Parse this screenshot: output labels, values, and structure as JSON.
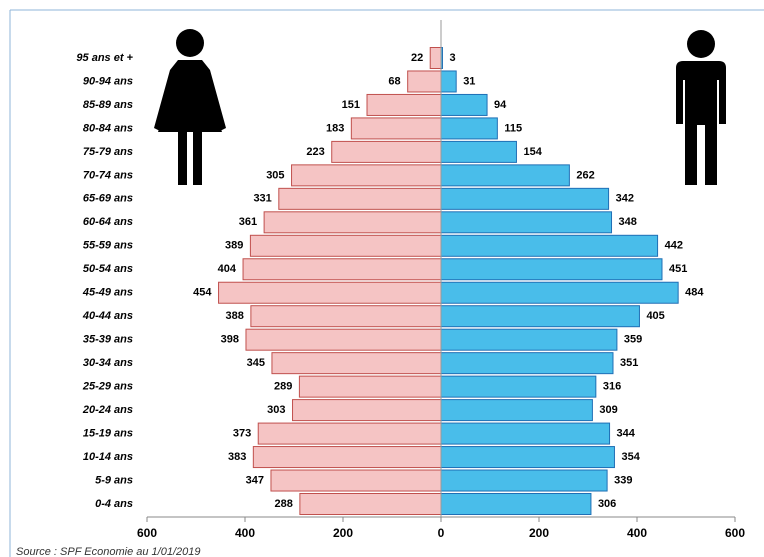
{
  "chart_data": {
    "type": "pyramid",
    "categories": [
      "95 ans et +",
      "90-94 ans",
      "85-89 ans",
      "80-84 ans",
      "75-79 ans",
      "70-74 ans",
      "65-69 ans",
      "60-64 ans",
      "55-59 ans",
      "50-54 ans",
      "45-49 ans",
      "40-44 ans",
      "35-39 ans",
      "30-34 ans",
      "25-29 ans",
      "20-24 ans",
      "15-19 ans",
      "10-14 ans",
      "5-9 ans",
      "0-4 ans"
    ],
    "series": [
      {
        "side": "left",
        "color": "#f5c4c4",
        "edge": "#c0504d",
        "values": [
          22,
          68,
          151,
          183,
          223,
          305,
          331,
          361,
          389,
          404,
          454,
          388,
          398,
          345,
          289,
          303,
          373,
          383,
          347,
          288
        ]
      },
      {
        "side": "right",
        "color": "#49bdea",
        "edge": "#1f6fb5",
        "values": [
          3,
          31,
          94,
          115,
          154,
          262,
          342,
          348,
          442,
          451,
          484,
          405,
          359,
          351,
          316,
          309,
          344,
          354,
          339,
          306
        ]
      }
    ],
    "xlim": [
      -600,
      600
    ],
    "xticks": [
      {
        "value": -600,
        "label": "600"
      },
      {
        "value": -400,
        "label": "400"
      },
      {
        "value": -200,
        "label": "200"
      },
      0,
      200,
      400,
      600
    ],
    "source": "Source : SPF Economie au 1/01/2019"
  }
}
